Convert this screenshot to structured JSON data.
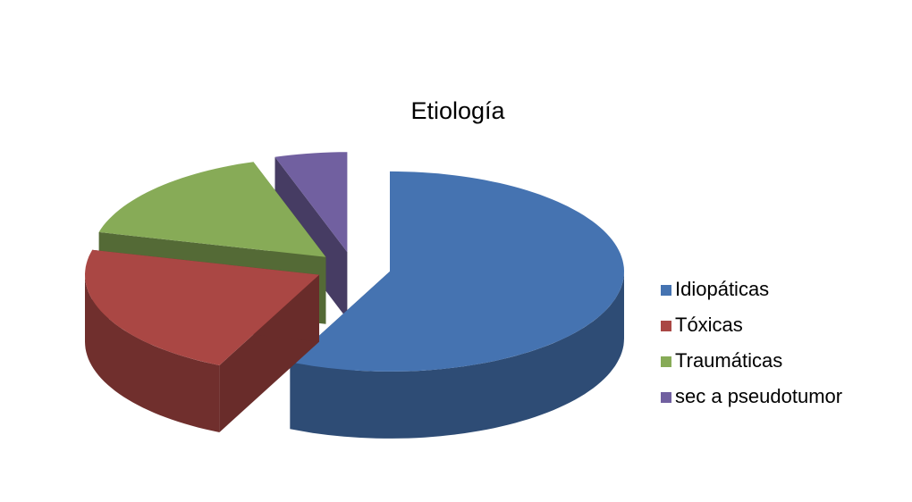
{
  "chart_data": {
    "type": "pie",
    "title": "Etiología",
    "categories": [
      "Idiopáticas",
      "Tóxicas",
      "Traumáticas",
      "sec a pseudotumor"
    ],
    "values": [
      57,
      22,
      16,
      5
    ],
    "colors": [
      "#4573b1",
      "#aa4744",
      "#87ab57",
      "#7160a0"
    ],
    "legend": "right"
  }
}
